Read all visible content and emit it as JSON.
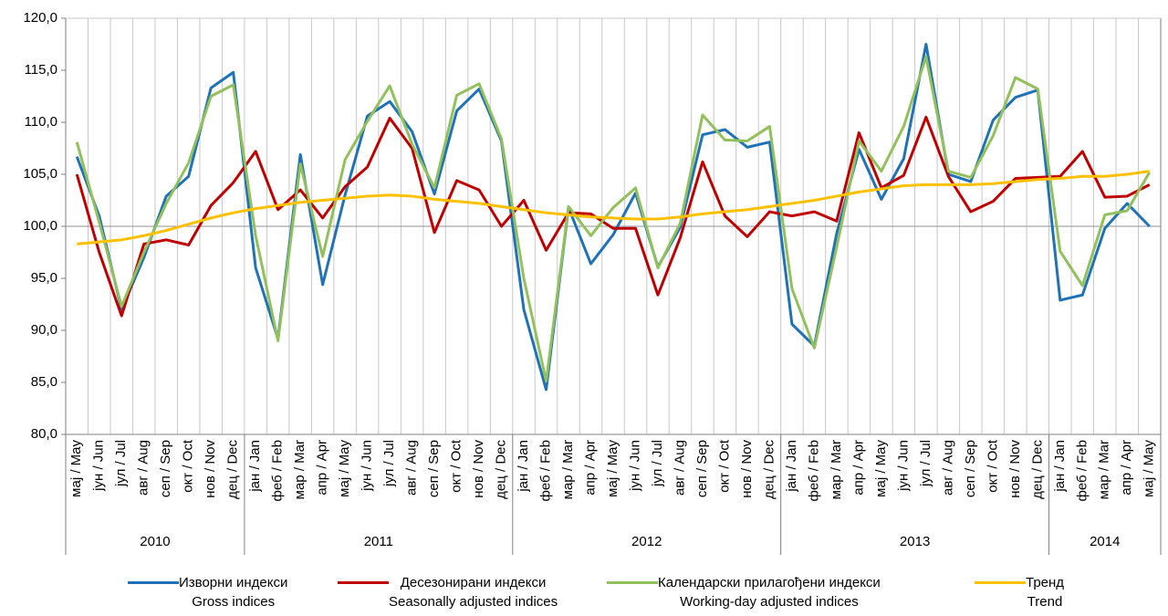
{
  "chart_data": {
    "type": "line",
    "groups": [
      {
        "label": "2010",
        "categories": [
          "мај / May",
          "јун / Jun",
          "јул / Jul",
          "авг / Aug",
          "сеп / Sep",
          "окт / Oct",
          "нов / Nov",
          "дец / Dec"
        ]
      },
      {
        "label": "2011",
        "categories": [
          "јан / Jan",
          "феб / Feb",
          "мар / Mar",
          "апр / Apr",
          "мај / May",
          "јун / Jun",
          "јул / Jul",
          "авг / Aug",
          "сеп / Sep",
          "окт / Oct",
          "нов / Nov",
          "дец / Dec"
        ]
      },
      {
        "label": "2012",
        "categories": [
          "јан / Jan",
          "феб / Feb",
          "мар / Mar",
          "апр / Apr",
          "мај / May",
          "јун / Jun",
          "јул / Jul",
          "авг / Aug",
          "сеп / Sep",
          "окт / Oct",
          "нов / Nov",
          "дец / Dec"
        ]
      },
      {
        "label": "2013",
        "categories": [
          "јан / Jan",
          "феб / Feb",
          "мар / Mar",
          "апр / Apr",
          "мај / May",
          "јун / Jun",
          "јул / Jul",
          "авг / Aug",
          "сеп / Sep",
          "окт / Oct",
          "нов / Nov",
          "дец / Dec"
        ]
      },
      {
        "label": "2014",
        "categories": [
          "јан / Jan",
          "феб / Feb",
          "мар / Mar",
          "апр / Apr",
          "мај / May"
        ]
      }
    ],
    "series": [
      {
        "name": "Изворни индекси\nGross indices",
        "color": "#1f72b8",
        "values": [
          106.7,
          101.0,
          92.0,
          97.0,
          102.9,
          104.8,
          113.3,
          114.8,
          96.0,
          89.2,
          106.9,
          94.4,
          103.0,
          110.6,
          112.0,
          109.1,
          103.1,
          111.1,
          113.2,
          108.2,
          92.0,
          84.3,
          101.8,
          96.4,
          99.2,
          103.2,
          96.1,
          99.9,
          108.8,
          109.3,
          107.6,
          108.1,
          90.6,
          88.5,
          99.3,
          107.4,
          102.6,
          106.5,
          117.5,
          105.0,
          104.3,
          110.2,
          112.4,
          113.1,
          92.9,
          93.4,
          99.8,
          102.2,
          100.0
        ]
      },
      {
        "name": "Десезонирани индекси\nSeasonally adjusted indices",
        "color": "#c00000",
        "values": [
          105.0,
          97.5,
          91.4,
          98.3,
          98.7,
          98.2,
          102.0,
          104.2,
          107.2,
          101.6,
          103.5,
          100.8,
          103.8,
          105.7,
          110.4,
          107.5,
          99.4,
          104.4,
          103.5,
          100.0,
          102.5,
          97.7,
          101.3,
          101.2,
          99.8,
          99.8,
          93.4,
          98.9,
          106.2,
          101.0,
          99.0,
          101.4,
          101.0,
          101.4,
          100.5,
          109.0,
          103.7,
          104.9,
          110.5,
          104.8,
          101.4,
          102.4,
          104.6,
          104.7,
          104.8,
          107.2,
          102.8,
          102.9,
          104.0
        ]
      },
      {
        "name": "Календарски прилагођени индекси\nWorking-day adjusted indices",
        "color": "#92c05a",
        "values": [
          108.1,
          100.4,
          92.3,
          97.5,
          102.2,
          106.1,
          112.5,
          113.6,
          99.1,
          89.0,
          106.0,
          97.1,
          106.4,
          110.1,
          113.5,
          107.9,
          103.7,
          112.6,
          113.7,
          108.4,
          95.0,
          85.1,
          101.9,
          99.1,
          101.8,
          103.7,
          96.0,
          100.3,
          110.7,
          108.3,
          108.2,
          109.6,
          94.0,
          88.3,
          98.0,
          108.2,
          105.3,
          109.6,
          116.3,
          105.3,
          104.7,
          108.7,
          114.3,
          113.2,
          97.6,
          94.3,
          101.1,
          101.5,
          105.2
        ]
      },
      {
        "name": "Тренд\nTrend",
        "color": "#ffc000",
        "values": [
          98.3,
          98.5,
          98.7,
          99.1,
          99.6,
          100.2,
          100.8,
          101.3,
          101.7,
          102.0,
          102.3,
          102.5,
          102.7,
          102.9,
          103.0,
          102.9,
          102.6,
          102.4,
          102.2,
          101.9,
          101.6,
          101.3,
          101.1,
          100.9,
          100.8,
          100.7,
          100.7,
          100.9,
          101.2,
          101.4,
          101.6,
          101.9,
          102.2,
          102.5,
          102.9,
          103.3,
          103.6,
          103.9,
          104.0,
          104.0,
          104.0,
          104.1,
          104.3,
          104.5,
          104.6,
          104.8,
          104.8,
          105.0,
          105.3
        ]
      }
    ],
    "ylim": [
      80,
      120
    ],
    "yticks": [
      {
        "value": 80,
        "label": "80,0"
      },
      {
        "value": 85,
        "label": "85,0"
      },
      {
        "value": 90,
        "label": "90,0"
      },
      {
        "value": 95,
        "label": "95,0"
      },
      {
        "value": 100,
        "label": "100,0"
      },
      {
        "value": 105,
        "label": "105,0"
      },
      {
        "value": 110,
        "label": "110,0"
      },
      {
        "value": 115,
        "label": "115,0"
      },
      {
        "value": 120,
        "label": "120,0"
      }
    ],
    "baseline": 100,
    "grid": true
  }
}
